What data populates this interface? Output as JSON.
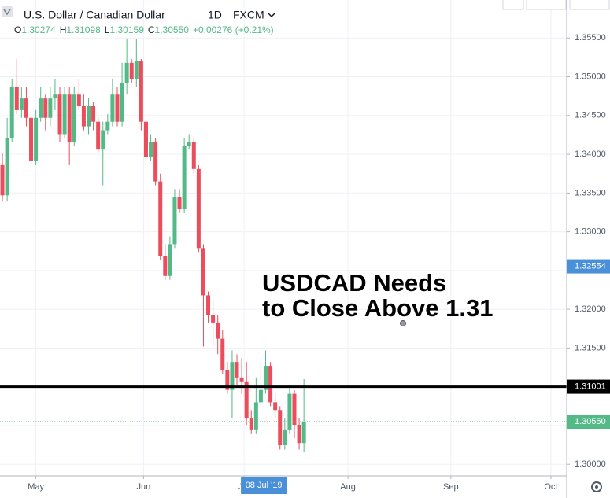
{
  "header": {
    "symbol": "U.S. Dollar / Canadian Dollar",
    "interval": "1D",
    "exchange": "FXCM",
    "ohlc": [
      {
        "key": "O",
        "value": "1.30274"
      },
      {
        "key": "H",
        "value": "1.31098"
      },
      {
        "key": "L",
        "value": "1.30159"
      },
      {
        "key": "C",
        "value": "1.30550"
      }
    ],
    "change": "+0.00276 (+0.21%)"
  },
  "chart_data": {
    "type": "candlestick",
    "up_color": "#53b987",
    "down_color": "#eb4d5c",
    "x": [
      0,
      1,
      2,
      3,
      4,
      5,
      6,
      7,
      8,
      9,
      10,
      11,
      12,
      13,
      14,
      15,
      16,
      17,
      18,
      19,
      20,
      21,
      22,
      23,
      24,
      25,
      26,
      27,
      28,
      29,
      30,
      31,
      32,
      33,
      34,
      35,
      36,
      37,
      38,
      39,
      40,
      41,
      42,
      43,
      44,
      45,
      46,
      47,
      48,
      49,
      50,
      51,
      52,
      53,
      54,
      55,
      56,
      57,
      58,
      59,
      60,
      61,
      62,
      63
    ],
    "open": [
      1.3386,
      1.3347,
      1.3421,
      1.3487,
      1.3457,
      1.3472,
      1.3447,
      1.3391,
      1.3447,
      1.3472,
      1.3447,
      1.3472,
      1.3477,
      1.3426,
      1.3477,
      1.3416,
      1.3477,
      1.3462,
      1.3436,
      1.3462,
      1.3442,
      1.3406,
      1.3431,
      1.3442,
      1.3477,
      1.3442,
      1.3492,
      1.3518,
      1.3497,
      1.352,
      1.3442,
      1.3396,
      1.3416,
      1.3365,
      1.3269,
      1.3243,
      1.3284,
      1.3345,
      1.3329,
      1.3411,
      1.3416,
      1.3381,
      1.3279,
      1.3218,
      1.3193,
      1.3183,
      1.3162,
      1.3122,
      1.3096,
      1.3132,
      1.3112,
      1.3107,
      1.306,
      1.3045,
      1.308,
      1.3096,
      1.3127,
      1.308,
      1.307,
      1.3025,
      1.3045,
      1.3091,
      1.3051,
      1.30274
    ],
    "high": [
      1.3401,
      1.3447,
      1.3497,
      1.3523,
      1.3487,
      1.3487,
      1.3452,
      1.3457,
      1.3487,
      1.3477,
      1.3487,
      1.3497,
      1.3487,
      1.3487,
      1.3487,
      1.3487,
      1.3497,
      1.3477,
      1.3472,
      1.3467,
      1.3447,
      1.3442,
      1.3452,
      1.3497,
      1.3487,
      1.3518,
      1.3549,
      1.3523,
      1.3549,
      1.3523,
      1.3447,
      1.3426,
      1.3421,
      1.3375,
      1.3284,
      1.3294,
      1.3355,
      1.3355,
      1.3421,
      1.3426,
      1.3421,
      1.3386,
      1.3284,
      1.3223,
      1.3213,
      1.3193,
      1.3173,
      1.3132,
      1.3147,
      1.3142,
      1.3137,
      1.3132,
      1.307,
      1.3112,
      1.3132,
      1.3147,
      1.3132,
      1.3091,
      1.3075,
      1.306,
      1.3102,
      1.3096,
      1.306,
      1.31098
    ],
    "low": [
      1.3339,
      1.3339,
      1.3416,
      1.3452,
      1.3447,
      1.3436,
      1.3381,
      1.3386,
      1.3442,
      1.3431,
      1.3436,
      1.3457,
      1.3416,
      1.3421,
      1.3386,
      1.3411,
      1.3457,
      1.3431,
      1.3426,
      1.3431,
      1.3401,
      1.336,
      1.3426,
      1.3436,
      1.3436,
      1.3436,
      1.3477,
      1.3492,
      1.3487,
      1.3431,
      1.3386,
      1.3391,
      1.336,
      1.3263,
      1.3238,
      1.3238,
      1.3279,
      1.3324,
      1.3324,
      1.3406,
      1.3375,
      1.3274,
      1.3152,
      1.3183,
      1.3152,
      1.3142,
      1.3117,
      1.3091,
      1.306,
      1.3102,
      1.3091,
      1.3051,
      1.3039,
      1.3039,
      1.3075,
      1.3091,
      1.3075,
      1.306,
      1.3019,
      1.3019,
      1.3039,
      1.3034,
      1.3019,
      1.30159
    ],
    "close": [
      1.3347,
      1.3421,
      1.3487,
      1.3457,
      1.3472,
      1.3447,
      1.3391,
      1.3447,
      1.3472,
      1.3447,
      1.3472,
      1.3477,
      1.3426,
      1.3477,
      1.3416,
      1.3477,
      1.3462,
      1.3436,
      1.3462,
      1.3442,
      1.3406,
      1.3431,
      1.3442,
      1.3477,
      1.3442,
      1.3492,
      1.3518,
      1.3497,
      1.352,
      1.3442,
      1.3396,
      1.3416,
      1.3365,
      1.3269,
      1.3243,
      1.3284,
      1.3345,
      1.3329,
      1.3411,
      1.3416,
      1.3381,
      1.3279,
      1.3218,
      1.3193,
      1.3183,
      1.3162,
      1.3122,
      1.3096,
      1.3132,
      1.3112,
      1.3107,
      1.306,
      1.3045,
      1.308,
      1.3096,
      1.3127,
      1.308,
      1.307,
      1.3025,
      1.3045,
      1.3091,
      1.3051,
      1.30274,
      1.3055
    ],
    "xlim": [
      -0.5,
      117.9
    ],
    "xticks": [
      {
        "value": 7,
        "label": "May"
      },
      {
        "value": 29.5,
        "label": "Jun"
      },
      {
        "value": 50.5,
        "label": "Jul"
      },
      {
        "value": 72.2,
        "label": "Aug"
      },
      {
        "value": 93.7,
        "label": "Sep"
      },
      {
        "value": 114.6,
        "label": "Oct"
      }
    ],
    "ylim": [
      1.2985,
      1.3599
    ],
    "yticks": [
      {
        "value": 1.3,
        "label": "1.30000"
      },
      {
        "value": 1.305,
        "label": "1.30500"
      },
      {
        "value": 1.31,
        "label": "1.31000"
      },
      {
        "value": 1.315,
        "label": "1.31500"
      },
      {
        "value": 1.32,
        "label": "1.32000"
      },
      {
        "value": 1.325,
        "label": "1.32500"
      },
      {
        "value": 1.33,
        "label": "1.33000"
      },
      {
        "value": 1.335,
        "label": "1.33500"
      },
      {
        "value": 1.34,
        "label": "1.34000"
      },
      {
        "value": 1.345,
        "label": "1.34500"
      },
      {
        "value": 1.35,
        "label": "1.35000"
      },
      {
        "value": 1.355,
        "label": "1.35500"
      }
    ],
    "grid": true,
    "horizontal_line": {
      "value": 1.31001,
      "label": "1.31001",
      "color": "#000000"
    },
    "last_price": {
      "value": 1.3055,
      "label": "1.30550",
      "color": "#53b987"
    },
    "crosshair": {
      "x": {
        "value": 54.6,
        "label": "08 Jul '19"
      },
      "y": {
        "value": 1.32554,
        "label": "1.32554"
      },
      "color": "#4a90d9"
    },
    "annotation": [
      "USDCAD Needs",
      "to Close Above 1.31"
    ]
  }
}
